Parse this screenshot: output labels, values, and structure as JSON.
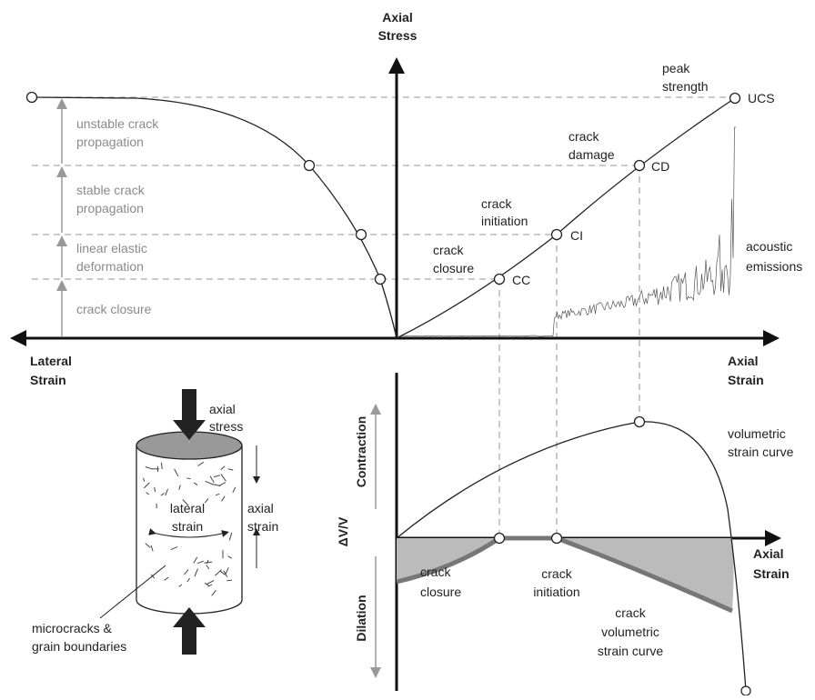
{
  "stress_strain": {
    "y_axis_label": [
      "Axial",
      "Stress"
    ],
    "x_axis_right_label": [
      "Axial",
      "Strain"
    ],
    "x_axis_left_label": [
      "Lateral",
      "Strain"
    ],
    "points": {
      "ucs_note": [
        "peak",
        "strength"
      ],
      "ucs": "UCS",
      "cd_note": [
        "crack",
        "damage"
      ],
      "cd": "CD",
      "ci_note": [
        "crack",
        "initiation"
      ],
      "ci": "CI",
      "cc_note": [
        "crack",
        "closure"
      ],
      "cc": "CC"
    },
    "acoustic": [
      "acoustic",
      "emissions"
    ],
    "stages": [
      [
        "unstable crack",
        "propagation"
      ],
      [
        "stable crack",
        "propagation"
      ],
      [
        "linear elastic",
        "deformation"
      ],
      [
        "crack closure"
      ]
    ]
  },
  "volumetric": {
    "contraction": "Contraction",
    "dv": "ΔV/V",
    "dilation": "Dilation",
    "curve_label": [
      "volumetric",
      "strain curve"
    ],
    "x_axis_label": [
      "Axial",
      "Strain"
    ],
    "closure": [
      "crack",
      "closure"
    ],
    "initiation": [
      "crack",
      "initiation"
    ],
    "crack_curve_label": [
      "crack",
      "volumetric",
      "strain curve"
    ]
  },
  "specimen": {
    "axial_stress": [
      "axial",
      "stress"
    ],
    "lateral_strain": [
      "lateral",
      "strain"
    ],
    "axial_strain": [
      "axial",
      "strain"
    ],
    "microcracks": [
      "microcracks &",
      "grain boundaries"
    ]
  }
}
